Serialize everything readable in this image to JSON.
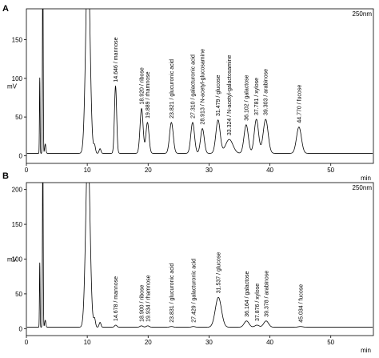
{
  "chart_data": [
    {
      "type": "line",
      "panel": "A",
      "wavelength_label": "250nm",
      "xlabel": "min",
      "ylabel": "mV",
      "xlim": [
        0,
        57
      ],
      "ylim": [
        -10,
        190
      ],
      "xticks": [
        0,
        10,
        20,
        30,
        40,
        50
      ],
      "yticks": [
        0,
        50,
        100,
        150
      ],
      "baseline": 3,
      "early_peaks": [
        {
          "t": 2.2,
          "height": 98,
          "width": 0.05
        },
        {
          "t": 2.7,
          "height": 260,
          "width": 0.06
        },
        {
          "t": 3.1,
          "height": 12,
          "width": 0.1
        },
        {
          "t": 10.1,
          "height": 260,
          "width": 0.35
        },
        {
          "t": 11.2,
          "height": 10,
          "width": 0.15
        },
        {
          "t": 12.1,
          "height": 6,
          "width": 0.15
        }
      ],
      "peaks": [
        {
          "t": 14.646,
          "height": 87,
          "width": 0.18,
          "label": "14.646 / mannose"
        },
        {
          "t": 18.92,
          "height": 58,
          "width": 0.25,
          "label": "18.920 / ribose"
        },
        {
          "t": 19.889,
          "height": 40,
          "width": 0.25,
          "label": "19.889 / rhamnose"
        },
        {
          "t": 23.821,
          "height": 40,
          "width": 0.3,
          "label": "23.821 / glucuronic acid"
        },
        {
          "t": 27.31,
          "height": 40,
          "width": 0.3,
          "label": "27.310 / galacturonic acid"
        },
        {
          "t": 28.913,
          "height": 32,
          "width": 0.3,
          "label": "28.913 / N-acetyl-glucosamine"
        },
        {
          "t": 31.479,
          "height": 43,
          "width": 0.35,
          "label": "31.479 / glucose"
        },
        {
          "t": 33.324,
          "height": 18,
          "width": 0.6,
          "label": "33.324 / N-acetyl-galactosamine"
        },
        {
          "t": 36.102,
          "height": 37,
          "width": 0.35,
          "label": "36.102 / galactose"
        },
        {
          "t": 37.781,
          "height": 44,
          "width": 0.35,
          "label": "37.781 / xylose"
        },
        {
          "t": 39.303,
          "height": 44,
          "width": 0.4,
          "label": "39.303 / arabinose"
        },
        {
          "t": 44.77,
          "height": 34,
          "width": 0.4,
          "label": "44.770 / fucose"
        }
      ]
    },
    {
      "type": "line",
      "panel": "B",
      "wavelength_label": "250nm",
      "xlabel": "min",
      "ylabel": "mV",
      "xlim": [
        0,
        57
      ],
      "ylim": [
        -10,
        210
      ],
      "xticks": [
        0,
        10,
        20,
        30,
        40,
        50
      ],
      "yticks": [
        0,
        50,
        100,
        150,
        200
      ],
      "baseline": 2,
      "early_peaks": [
        {
          "t": 2.2,
          "height": 93,
          "width": 0.05
        },
        {
          "t": 2.7,
          "height": 260,
          "width": 0.06
        },
        {
          "t": 3.1,
          "height": 10,
          "width": 0.1
        },
        {
          "t": 10.1,
          "height": 260,
          "width": 0.35
        },
        {
          "t": 11.2,
          "height": 12,
          "width": 0.15
        },
        {
          "t": 12.1,
          "height": 7,
          "width": 0.15
        }
      ],
      "peaks": [
        {
          "t": 14.678,
          "height": 3,
          "width": 0.2,
          "label": "14.678 / mannose"
        },
        {
          "t": 18.9,
          "height": 2,
          "width": 0.25,
          "label": "18.900 / ribose"
        },
        {
          "t": 19.934,
          "height": 2,
          "width": 0.25,
          "label": "19.934 / rhamnose"
        },
        {
          "t": 23.831,
          "height": 1,
          "width": 0.3,
          "label": "23.831 / glucuronic acid"
        },
        {
          "t": 27.429,
          "height": 1,
          "width": 0.3,
          "label": "27.429 / galacturonic acid"
        },
        {
          "t": 31.537,
          "height": 43,
          "width": 0.5,
          "label": "31.537 / glucose"
        },
        {
          "t": 36.164,
          "height": 9,
          "width": 0.4,
          "label": "36.164 / galactose"
        },
        {
          "t": 37.876,
          "height": 3,
          "width": 0.35,
          "label": "37.876 / xylose"
        },
        {
          "t": 39.378,
          "height": 9,
          "width": 0.4,
          "label": "39.378 / arabinose"
        },
        {
          "t": 45.034,
          "height": 1,
          "width": 0.4,
          "label": "45.034 / fucose"
        }
      ]
    }
  ]
}
